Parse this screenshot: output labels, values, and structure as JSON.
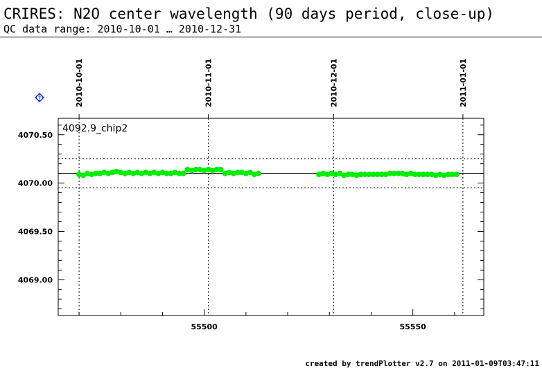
{
  "header": {
    "title": "CRIRES: N2O center wavelength (90 days period, close-up)",
    "subtitle": "QC data range: 2010-10-01 … 2010-12-31"
  },
  "footer": {
    "credit": "created by trendPlotter v2.7 on 2011-01-09T03:47:11"
  },
  "badge": {
    "label": "?",
    "icon": "help-diamond-icon",
    "color": "#1a3fd6"
  },
  "chart_data": {
    "type": "scatter",
    "title": "",
    "xlabel": "",
    "ylabel": "",
    "xlim": [
      55465,
      55567
    ],
    "ylim": [
      4068.63,
      4070.67
    ],
    "yticks": [
      {
        "value": 4069.0,
        "label": "4069.00"
      },
      {
        "value": 4069.5,
        "label": "4069.50"
      },
      {
        "value": 4070.0,
        "label": "4070.00"
      },
      {
        "value": 4070.5,
        "label": "4070.50"
      }
    ],
    "xticks": [
      {
        "value": 55500,
        "label": "55500"
      },
      {
        "value": 55550,
        "label": "55550"
      }
    ],
    "date_ticks": [
      {
        "value": 55470,
        "label": "2010-10-01"
      },
      {
        "value": 55501,
        "label": "2010-11-01"
      },
      {
        "value": 55531,
        "label": "2010-12-01"
      },
      {
        "value": 55562,
        "label": "2011-01-01"
      }
    ],
    "reference_line": 4070.1,
    "band_lines": [
      4070.25,
      4069.95
    ],
    "series_color": "#00ee00",
    "series": [
      {
        "name": "4092.9_chip2",
        "x": [
          55470.0,
          55471.0,
          55472.0,
          55473.0,
          55474.0,
          55475.0,
          55476.0,
          55477.0,
          55478.0,
          55479.0,
          55480.0,
          55481.0,
          55482.0,
          55483.0,
          55484.0,
          55485.0,
          55486.0,
          55487.0,
          55488.0,
          55489.0,
          55490.0,
          55491.0,
          55492.0,
          55493.0,
          55494.0,
          55495.0,
          55496.0,
          55497.0,
          55498.0,
          55499.0,
          55500.0,
          55501.0,
          55502.0,
          55503.0,
          55504.0,
          55505.0,
          55506.0,
          55507.0,
          55508.0,
          55509.0,
          55510.0,
          55511.0,
          55512.0,
          55513.0,
          55527.5,
          55528.5,
          55529.5,
          55530.5,
          55531.5,
          55532.5,
          55533.5,
          55534.5,
          55535.5,
          55536.5,
          55537.5,
          55538.5,
          55539.5,
          55540.5,
          55541.5,
          55542.5,
          55543.5,
          55544.5,
          55545.5,
          55546.5,
          55547.5,
          55548.5,
          55549.5,
          55550.5,
          55551.5,
          55552.5,
          55553.5,
          55554.5,
          55555.5,
          55556.5,
          55557.5,
          55558.5,
          55559.5,
          55560.5
        ],
        "y": [
          4070.09,
          4070.08,
          4070.1,
          4070.09,
          4070.1,
          4070.1,
          4070.11,
          4070.1,
          4070.11,
          4070.12,
          4070.11,
          4070.1,
          4070.11,
          4070.1,
          4070.11,
          4070.1,
          4070.11,
          4070.1,
          4070.11,
          4070.1,
          4070.11,
          4070.1,
          4070.1,
          4070.11,
          4070.1,
          4070.1,
          4070.14,
          4070.13,
          4070.14,
          4070.14,
          4070.13,
          4070.14,
          4070.13,
          4070.14,
          4070.14,
          4070.1,
          4070.11,
          4070.1,
          4070.11,
          4070.11,
          4070.1,
          4070.11,
          4070.09,
          4070.1,
          4070.09,
          4070.1,
          4070.09,
          4070.1,
          4070.09,
          4070.1,
          4070.08,
          4070.09,
          4070.09,
          4070.08,
          4070.09,
          4070.09,
          4070.09,
          4070.09,
          4070.09,
          4070.09,
          4070.09,
          4070.1,
          4070.1,
          4070.1,
          4070.1,
          4070.09,
          4070.1,
          4070.09,
          4070.09,
          4070.09,
          4070.09,
          4070.09,
          4070.08,
          4070.09,
          4070.08,
          4070.09,
          4070.09,
          4070.09
        ]
      }
    ],
    "grid": "dotted at date ticks",
    "legend": "top-left"
  }
}
